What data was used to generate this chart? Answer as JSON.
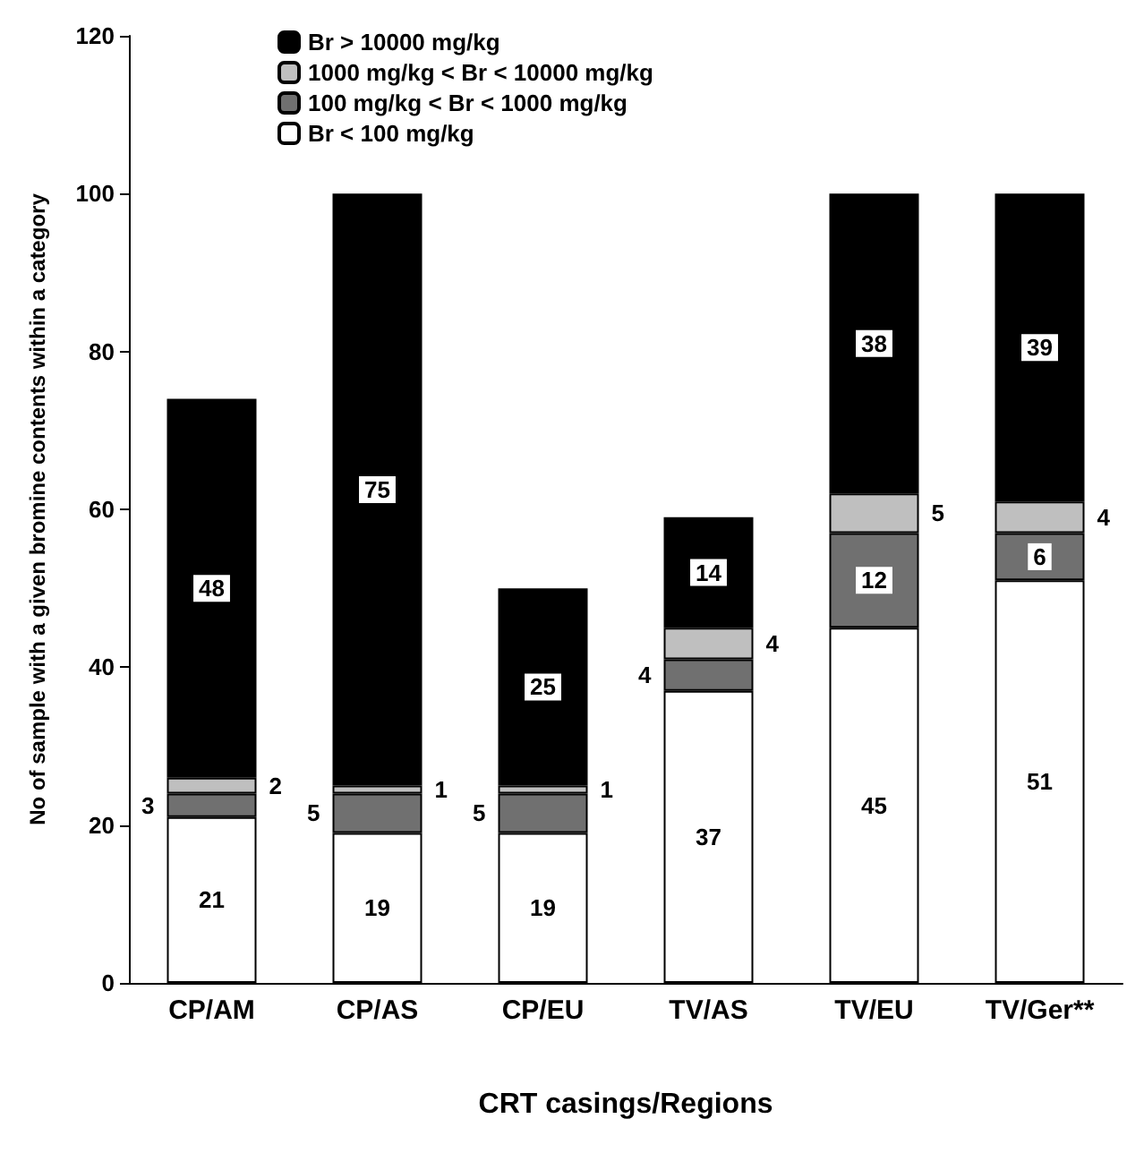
{
  "chart_data": {
    "type": "bar",
    "stacked": true,
    "xlabel": "CRT casings/Regions",
    "ylabel": "No of sample with a given bromine contents within a category",
    "categories": [
      "CP/AM",
      "CP/AS",
      "CP/EU",
      "TV/AS",
      "TV/EU",
      "TV/Ger**"
    ],
    "series": [
      {
        "name": "Br < 100 mg/kg",
        "color": "#ffffff",
        "values": [
          21,
          19,
          19,
          37,
          45,
          51
        ]
      },
      {
        "name": "100 mg/kg < Br < 1000 mg/kg",
        "color": "#707070",
        "values": [
          3,
          5,
          5,
          4,
          12,
          6
        ]
      },
      {
        "name": "1000 mg/kg < Br < 10000 mg/kg",
        "color": "#bfbfbf",
        "values": [
          2,
          1,
          1,
          4,
          5,
          4
        ]
      },
      {
        "name": "Br > 10000 mg/kg",
        "color": "#000000",
        "values": [
          48,
          75,
          25,
          14,
          38,
          39
        ]
      }
    ],
    "ylim": [
      0,
      120
    ],
    "yticks": [
      0,
      20,
      40,
      60,
      80,
      100,
      120
    ],
    "grid": false,
    "legend": "top left",
    "data_labels": true
  }
}
